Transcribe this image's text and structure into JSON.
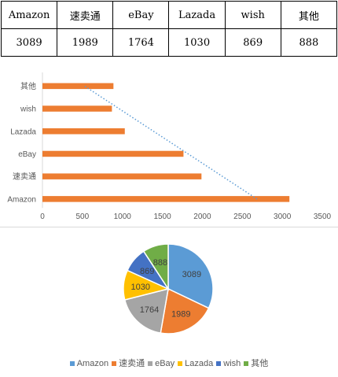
{
  "chart_data": [
    {
      "type": "table",
      "columns": [
        "Amazon",
        "速卖通",
        "eBay",
        "Lazada",
        "wish",
        "其他"
      ],
      "rows": [
        [
          "3089",
          "1989",
          "1764",
          "1030",
          "869",
          "888"
        ]
      ]
    },
    {
      "type": "bar",
      "orientation": "horizontal",
      "categories": [
        "Amazon",
        "速卖通",
        "eBay",
        "Lazada",
        "wish",
        "其他"
      ],
      "values": [
        3089,
        1989,
        1764,
        1030,
        869,
        888
      ],
      "xlim": [
        0,
        3500
      ],
      "xticks": [
        "0",
        "500",
        "1000",
        "1500",
        "2000",
        "2500",
        "3000",
        "3500"
      ],
      "trendline": true,
      "grid": false,
      "bar_color": "#ED7D31",
      "trend_color": "#5B9BD5"
    },
    {
      "type": "pie",
      "categories": [
        "Amazon",
        "速卖通",
        "eBay",
        "Lazada",
        "wish",
        "其他"
      ],
      "values": [
        3089,
        1989,
        1764,
        1030,
        869,
        888
      ],
      "data_labels": [
        "3089",
        "1989",
        "1764",
        "1030",
        "869",
        "888"
      ],
      "colors": [
        "#5B9BD5",
        "#ED7D31",
        "#A5A5A5",
        "#FFC000",
        "#4472C4",
        "#70AD47"
      ],
      "legend": "bottom"
    }
  ]
}
